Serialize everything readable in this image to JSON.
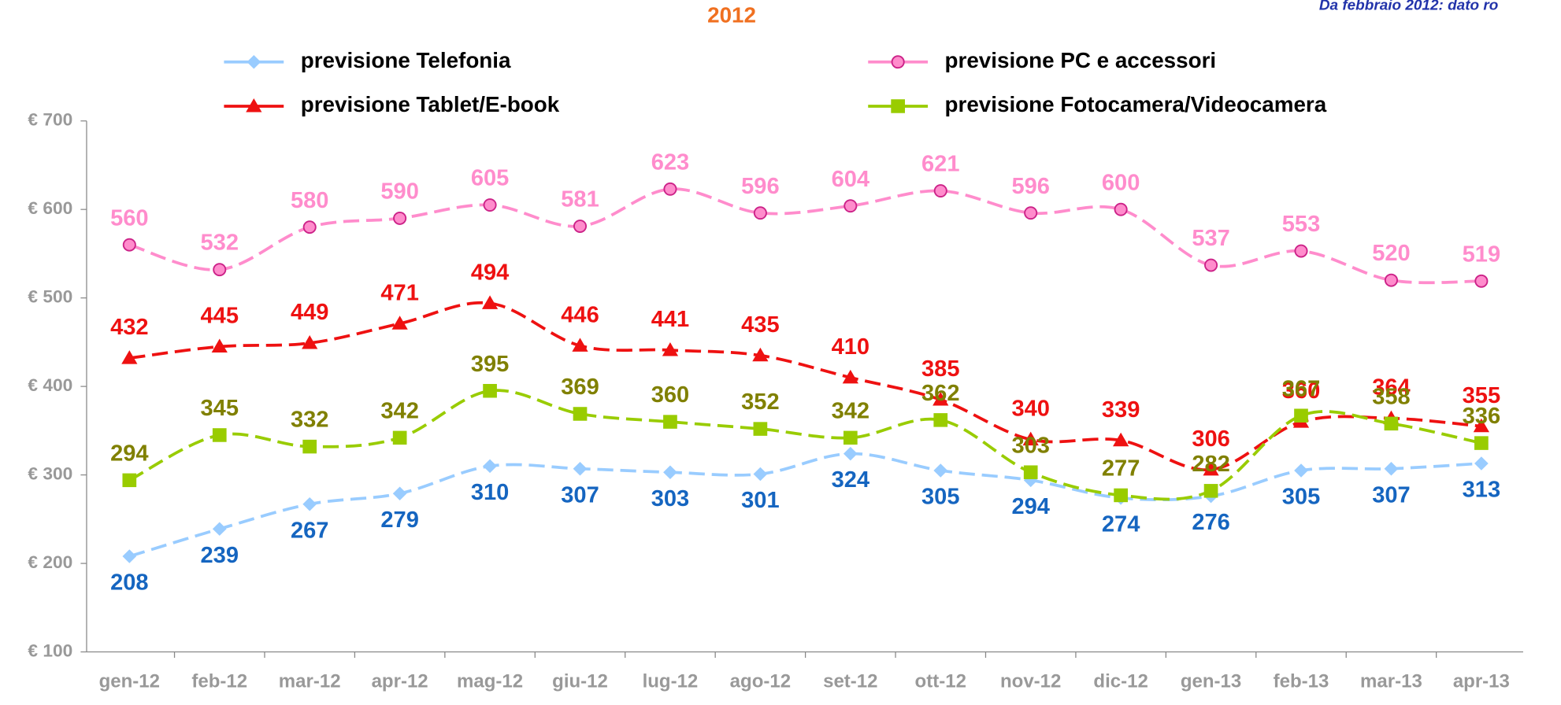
{
  "chart_data": {
    "type": "line",
    "title": "2012",
    "note": "Da febbraio 2012: dato ro",
    "categories": [
      "gen-12",
      "feb-12",
      "mar-12",
      "apr-12",
      "mag-12",
      "giu-12",
      "lug-12",
      "ago-12",
      "set-12",
      "ott-12",
      "nov-12",
      "dic-12",
      "gen-13",
      "feb-13",
      "mar-13",
      "apr-13"
    ],
    "ylim": [
      100,
      700
    ],
    "yticks": [
      {
        "value": 100,
        "label": "€ 100"
      },
      {
        "value": 200,
        "label": "€ 200"
      },
      {
        "value": 300,
        "label": "€ 300"
      },
      {
        "value": 400,
        "label": "€ 400"
      },
      {
        "value": 500,
        "label": "€ 500"
      },
      {
        "value": 600,
        "label": "€ 600"
      },
      {
        "value": 700,
        "label": "€ 700"
      }
    ],
    "series": [
      {
        "name": "previsione Telefonia",
        "color": "#99ccff",
        "label_color": "#1565c0",
        "marker": "diamond",
        "values": [
          208,
          239,
          267,
          279,
          310,
          307,
          303,
          301,
          324,
          305,
          294,
          274,
          276,
          305,
          307,
          313
        ]
      },
      {
        "name": "previsione PC e accessori",
        "color": "#ff8ccc",
        "label_color": "#ff8ccc",
        "marker": "circle",
        "values": [
          560,
          532,
          580,
          590,
          605,
          581,
          623,
          596,
          604,
          621,
          596,
          600,
          537,
          553,
          520,
          519
        ]
      },
      {
        "name": "previsione Tablet/E-book",
        "color": "#ee1111",
        "label_color": "#ee1111",
        "marker": "triangle",
        "values": [
          432,
          445,
          449,
          471,
          494,
          446,
          441,
          435,
          410,
          385,
          340,
          339,
          306,
          360,
          364,
          355
        ]
      },
      {
        "name": "previsione Fotocamera/Videocamera",
        "color": "#99cc00",
        "label_color": "#808000",
        "marker": "square",
        "values": [
          294,
          345,
          332,
          342,
          395,
          369,
          360,
          352,
          342,
          362,
          303,
          277,
          282,
          367,
          358,
          336
        ]
      }
    ]
  }
}
